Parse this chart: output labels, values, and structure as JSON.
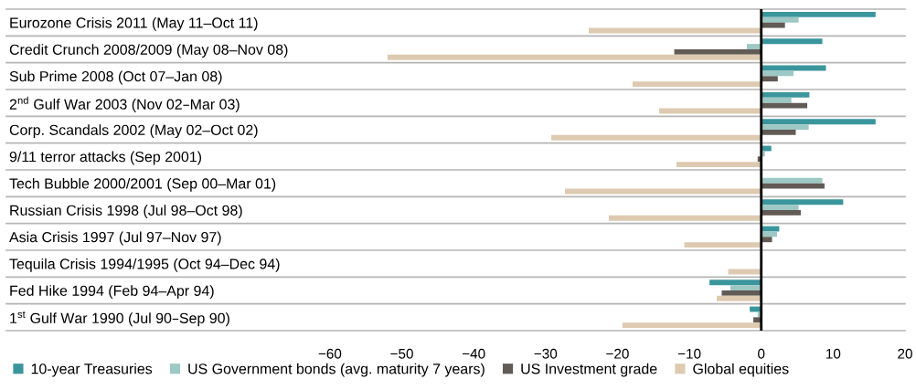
{
  "chart_data": {
    "type": "bar",
    "orientation": "horizontal",
    "categories": [
      "Eurozone Crisis 2011 (May 11–Oct 11)",
      "Credit Crunch 2008/2009 (May 08–Nov 08)",
      "Sub Prime 2008 (Oct 07–Jan 08)",
      "2$^{nd}$ Gulf War 2003 (Nov 02–Mar 03)",
      "Corp. Scandals 2002 (May 02–Oct 02)",
      "9/11 terror attacks (Sep 2001)",
      "Tech Bubble 2000/2001 (Sep 00–Mar 01)",
      "Russian Crisis 1998 (Jul 98–Oct 98)",
      "Asia Crisis 1997 (Jul 97–Nov 97)",
      "Tequila Crisis 1994/1995 (Oct 94–Dec 94)",
      "Fed Hike 1994 (Feb 94–Apr 94)",
      "1$^{st}$ Gulf War 1990 (Jul 90–Sep 90)"
    ],
    "series": [
      {
        "name": "10-year Treasuries",
        "color": "#3a969c",
        "values": [
          15.9,
          8.5,
          9.0,
          6.7,
          15.9,
          1.4,
          null,
          11.4,
          2.5,
          0,
          -7.2,
          -1.6
        ]
      },
      {
        "name": "US Government bonds (avg. maturity 7 years)",
        "color": "#9dc8c4",
        "values": [
          5.2,
          -2.0,
          4.5,
          4.2,
          6.6,
          0.5,
          8.5,
          5.2,
          2.2,
          null,
          -4.3,
          -0.5
        ]
      },
      {
        "name": "US Investment grade",
        "color": "#625a55",
        "values": [
          3.3,
          -12.1,
          2.3,
          6.4,
          4.8,
          -0.5,
          8.8,
          5.5,
          1.5,
          null,
          -5.5,
          -1.1
        ]
      },
      {
        "name": "Global equities",
        "color": "#ddcab1",
        "values": [
          -24.0,
          -52.0,
          -17.9,
          -14.2,
          -29.2,
          -11.8,
          -27.3,
          -21.2,
          -10.7,
          -4.6,
          -6.2,
          -19.3
        ]
      }
    ],
    "xlim": [
      -105,
      20
    ],
    "xticks": [
      -60,
      -50,
      -40,
      -30,
      -20,
      -10,
      0,
      10,
      20
    ],
    "ref_lines": [
      {
        "axis": "x",
        "value": 0,
        "color": "#000000"
      }
    ],
    "grid": false,
    "legend": "bottom"
  }
}
